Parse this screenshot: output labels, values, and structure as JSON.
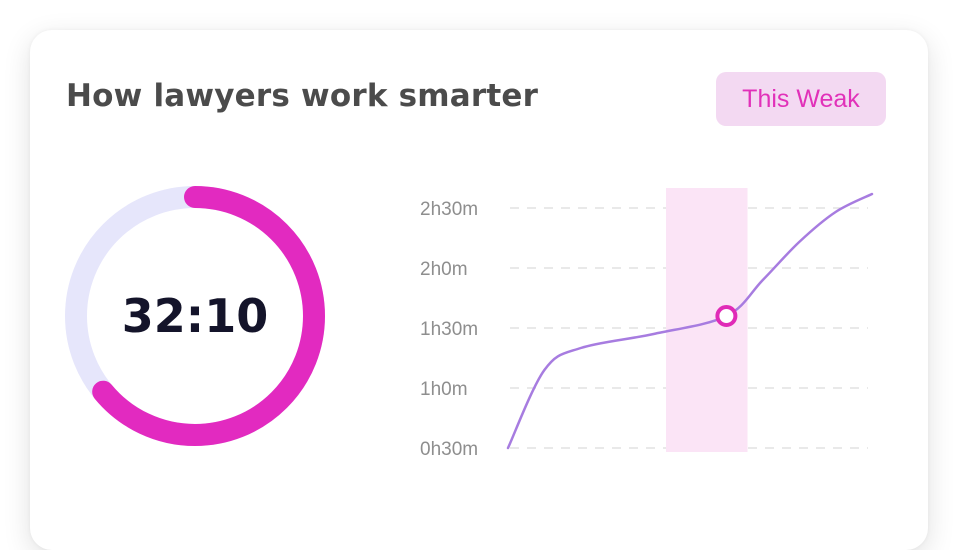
{
  "card": {
    "title": "How lawyers work smarter",
    "period_button": "This Weak"
  },
  "timer": {
    "value": "32:10",
    "progress_fraction": 0.64,
    "colors": {
      "track": "#e6e6fb",
      "progress": "#e22ac0"
    }
  },
  "chart_data": {
    "type": "line",
    "title": "",
    "xlabel": "",
    "ylabel": "",
    "y_ticks": [
      "0h30m",
      "1h0m",
      "1h30m",
      "2h0m",
      "2h30m"
    ],
    "ylim_minutes": [
      30,
      150
    ],
    "grid": true,
    "series": [
      {
        "color": "#a77ce0",
        "x": [
          0,
          0.1,
          0.2,
          0.4,
          0.6,
          0.7,
          0.8,
          0.9,
          1.0
        ],
        "y_minutes": [
          30,
          69,
          80,
          87,
          96,
          114,
          133,
          148,
          157
        ]
      }
    ],
    "highlight": {
      "x_range": [
        0.5,
        0.68
      ],
      "point": {
        "x": 0.6,
        "y_minutes": 96
      },
      "band_color": "#fbe4f6",
      "marker_color": "#e02bb7"
    }
  }
}
